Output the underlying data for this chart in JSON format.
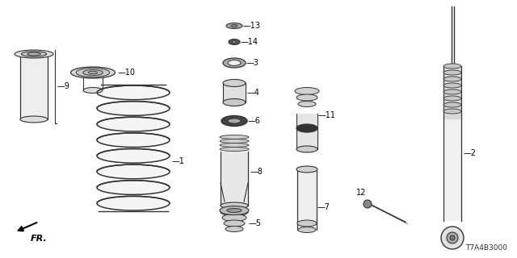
{
  "background_color": "#ffffff",
  "line_color": "#333333",
  "label_color": "#000000",
  "diagram_code": "T7A4B3000",
  "fig_w": 6.4,
  "fig_h": 3.2,
  "dpi": 100
}
